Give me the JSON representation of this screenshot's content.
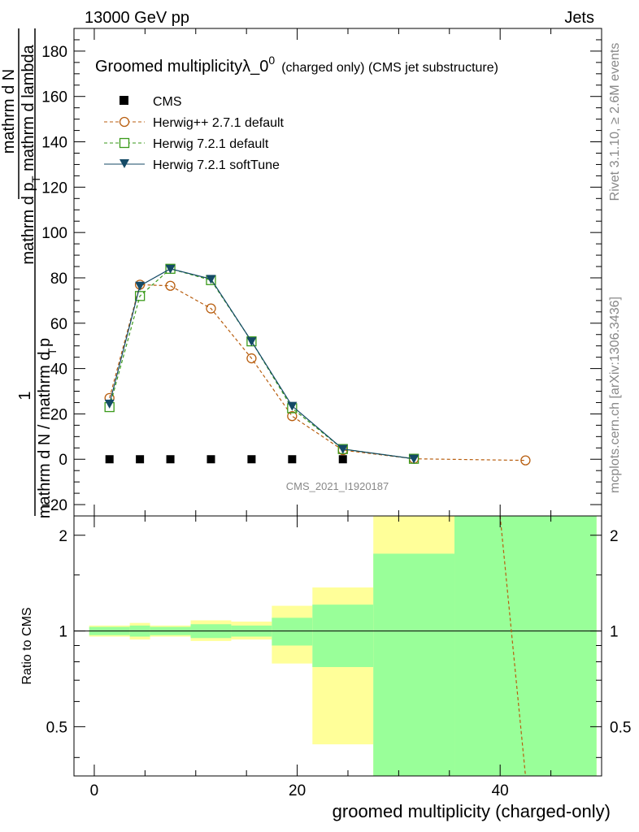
{
  "header": {
    "energy_label": "13000 GeV pp",
    "process_label": "Jets"
  },
  "side": {
    "rivet_label": "Rivet 3.1.10, ≥ 2.6M events",
    "mcplots_label": "mcplots.cern.ch [arXiv:1306.3436]"
  },
  "chart_data": [
    {
      "type": "line",
      "title": "Groomed multiplicityλ_0",
      "title_superscript": "0",
      "title_suffix": "(charged only) (CMS jet substructure)",
      "watermark": "CMS_2021_I1920187",
      "ylabel_parts": [
        "1",
        "mathrm d N / mathrm d p",
        "T",
        "mathrm d N",
        "mathrm d p",
        "T",
        "mathrm d lambda"
      ],
      "ylim": [
        -25,
        190
      ],
      "yticks": [
        -20,
        0,
        20,
        40,
        60,
        80,
        100,
        120,
        140,
        160,
        180
      ],
      "xlim": [
        -2,
        50
      ],
      "legend_position": "top-left",
      "series": [
        {
          "name": "CMS",
          "marker": "filled-square",
          "color": "#000000",
          "x": [
            1.5,
            4.5,
            7.5,
            11.5,
            15.5,
            19.5,
            24.5
          ],
          "y": [
            0,
            0,
            0,
            0,
            0,
            0,
            0
          ]
        },
        {
          "name": "Herwig++ 2.7.1 default",
          "marker": "open-circle",
          "color": "#b85e0f",
          "dashed": true,
          "x": [
            1.5,
            4.5,
            7.5,
            11.5,
            15.5,
            19.5,
            24.5,
            31.5,
            42.5
          ],
          "y": [
            27,
            77,
            76.5,
            66.5,
            44.5,
            19,
            4,
            0.2,
            -0.5
          ]
        },
        {
          "name": "Herwig 7.2.1 default",
          "marker": "open-square",
          "color": "#3a9a1a",
          "dashed": true,
          "x": [
            1.5,
            4.5,
            7.5,
            11.5,
            15.5,
            19.5,
            24.5,
            31.5
          ],
          "y": [
            23,
            72,
            84,
            79,
            52,
            22.5,
            4.5,
            0.2
          ]
        },
        {
          "name": "Herwig 7.2.1 softTune",
          "marker": "filled-triangle-down",
          "color": "#144a66",
          "dashed": false,
          "x": [
            1.5,
            4.5,
            7.5,
            11.5,
            15.5,
            19.5,
            24.5,
            31.5
          ],
          "y": [
            24.5,
            76.5,
            84,
            79.5,
            52,
            23.5,
            4.5,
            0.2
          ]
        }
      ]
    },
    {
      "type": "ratio",
      "ylabel": "Ratio to CMS",
      "xlabel": "groomed multiplicity (charged-only)",
      "ylim": [
        0.35,
        2.3
      ],
      "yticks": [
        0.5,
        1,
        2
      ],
      "ytick_labels": [
        "0.5",
        "1",
        "2"
      ],
      "xticks": [
        0,
        20,
        40
      ],
      "xtick_labels": [
        "0",
        "20",
        "40"
      ],
      "xlim": [
        -2,
        50
      ],
      "reference": 1,
      "band_colors": {
        "stat": "#99ff99",
        "total": "#ffff99"
      },
      "bins": [
        {
          "lo": -0.5,
          "hi": 3.5,
          "stat": [
            0.97,
            1.03
          ],
          "total": [
            0.96,
            1.04
          ]
        },
        {
          "lo": 3.5,
          "hi": 5.5,
          "stat": [
            0.96,
            1.04
          ],
          "total": [
            0.94,
            1.06
          ]
        },
        {
          "lo": 5.5,
          "hi": 9.5,
          "stat": [
            0.97,
            1.03
          ],
          "total": [
            0.96,
            1.04
          ]
        },
        {
          "lo": 9.5,
          "hi": 13.5,
          "stat": [
            0.95,
            1.05
          ],
          "total": [
            0.93,
            1.08
          ]
        },
        {
          "lo": 13.5,
          "hi": 17.5,
          "stat": [
            0.96,
            1.04
          ],
          "total": [
            0.94,
            1.07
          ]
        },
        {
          "lo": 17.5,
          "hi": 21.5,
          "stat": [
            0.9,
            1.1
          ],
          "total": [
            0.79,
            1.2
          ]
        },
        {
          "lo": 21.5,
          "hi": 27.5,
          "stat": [
            0.77,
            1.21
          ],
          "total": [
            0.44,
            1.37
          ]
        },
        {
          "lo": 27.5,
          "hi": 35.5,
          "stat": [
            0.3,
            1.75
          ],
          "total": [
            0.3,
            2.3
          ]
        },
        {
          "lo": 35.5,
          "hi": 49.5,
          "stat": [
            0.3,
            2.3
          ],
          "total": [
            0.3,
            2.3
          ]
        }
      ],
      "ratio_curves": [
        {
          "name": "Herwig++ 2.7.1 default",
          "color": "#b85e0f",
          "dashed": true,
          "x": [
            40.0,
            42.5
          ],
          "y": [
            2.3,
            0.35
          ]
        }
      ]
    }
  ]
}
